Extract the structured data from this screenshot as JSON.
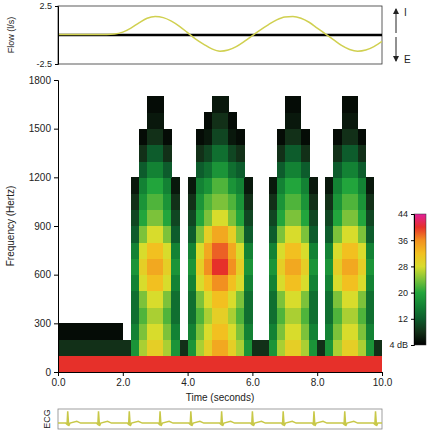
{
  "chart_data": [
    {
      "type": "line",
      "ylabel": "Flow (l/s)",
      "annotations": [
        "I",
        "E"
      ],
      "color": "#d0d050",
      "hline": 0,
      "xlim": [
        0,
        10
      ],
      "ylim": [
        -2.5,
        2.5
      ],
      "yticks": [
        2.5,
        -2.5
      ],
      "tick_labels": "y",
      "x": [
        0,
        0.25,
        0.5,
        0.75,
        1,
        1.25,
        1.5,
        1.75,
        2,
        2.25,
        2.5,
        2.75,
        3,
        3.25,
        3.5,
        3.75,
        4,
        4.25,
        4.5,
        4.75,
        5,
        5.25,
        5.5,
        5.75,
        6,
        6.25,
        6.5,
        6.75,
        7,
        7.25,
        7.5,
        7.75,
        8,
        8.25,
        8.5,
        8.75,
        9,
        9.25,
        9.5,
        9.75,
        10
      ],
      "values": [
        0.05,
        0.05,
        0.05,
        0.05,
        0.05,
        0.05,
        0.05,
        0.08,
        0.25,
        0.6,
        1.05,
        1.45,
        1.6,
        1.5,
        1.2,
        0.75,
        0.2,
        -0.35,
        -0.8,
        -1.2,
        -1.4,
        -1.3,
        -1.0,
        -0.55,
        -0.05,
        0.45,
        0.9,
        1.3,
        1.55,
        1.6,
        1.45,
        1.1,
        0.6,
        0.1,
        -0.4,
        -0.9,
        -1.25,
        -1.4,
        -1.3,
        -1.0,
        -0.55
      ]
    },
    {
      "type": "heatmap",
      "xlabel": "Time (seconds)",
      "ylabel": "Frequency (Hertz)",
      "xlim": [
        0,
        10
      ],
      "ylim": [
        0,
        1800
      ],
      "xticks": [
        {
          "value": 0,
          "label": "0.0"
        },
        {
          "value": 2,
          "label": "2.0"
        },
        {
          "value": 4,
          "label": "4.0"
        },
        {
          "value": 6,
          "label": "6.0"
        },
        {
          "value": 8,
          "label": "8.0"
        },
        {
          "value": 10,
          "label": "10.0"
        }
      ],
      "yticks": [
        0,
        300,
        600,
        900,
        1200,
        1500,
        1800
      ],
      "time_bins": [
        0,
        0.25,
        0.5,
        0.75,
        1,
        1.25,
        1.5,
        1.75,
        2,
        2.25,
        2.5,
        2.75,
        3,
        3.25,
        3.5,
        3.75,
        4,
        4.25,
        4.5,
        4.75,
        5,
        5.25,
        5.5,
        5.75,
        6,
        6.25,
        6.5,
        6.75,
        7,
        7.25,
        7.5,
        7.75,
        8,
        8.25,
        8.5,
        8.75,
        9,
        9.25,
        9.5,
        9.75,
        10
      ],
      "freq_bins": [
        0,
        100,
        200,
        300,
        400,
        500,
        600,
        700,
        800,
        900,
        1000,
        1100,
        1200,
        1300,
        1400,
        1500,
        1600,
        1700
      ],
      "cells": [
        [
          40,
          40,
          40,
          40,
          40,
          40,
          40,
          40,
          40,
          40,
          40,
          40,
          40,
          40,
          40,
          40,
          40,
          40,
          40,
          40,
          40,
          40,
          40,
          40,
          40,
          40,
          40,
          40,
          40,
          40,
          40,
          40,
          40,
          40,
          40,
          40,
          40,
          40,
          40,
          40
        ],
        [
          8,
          8,
          8,
          8,
          8,
          8,
          8,
          8,
          8,
          18,
          26,
          30,
          30,
          26,
          18,
          8,
          18,
          26,
          30,
          34,
          34,
          30,
          26,
          18,
          8,
          8,
          18,
          26,
          30,
          30,
          26,
          18,
          8,
          18,
          26,
          30,
          30,
          26,
          18,
          8
        ],
        [
          5,
          5,
          5,
          5,
          5,
          5,
          5,
          5,
          null,
          16,
          24,
          28,
          28,
          24,
          16,
          null,
          16,
          24,
          28,
          32,
          32,
          28,
          24,
          16,
          null,
          null,
          16,
          24,
          28,
          28,
          24,
          16,
          null,
          16,
          24,
          28,
          28,
          24,
          16,
          null
        ],
        [
          null,
          null,
          null,
          null,
          null,
          null,
          null,
          null,
          null,
          14,
          22,
          26,
          26,
          22,
          14,
          null,
          14,
          22,
          26,
          30,
          30,
          26,
          22,
          14,
          null,
          null,
          14,
          22,
          26,
          26,
          22,
          14,
          null,
          14,
          22,
          26,
          26,
          22,
          14,
          null
        ],
        [
          null,
          null,
          null,
          null,
          null,
          null,
          null,
          null,
          null,
          14,
          24,
          28,
          28,
          24,
          14,
          null,
          14,
          24,
          28,
          32,
          32,
          28,
          24,
          14,
          null,
          null,
          14,
          24,
          28,
          28,
          24,
          14,
          null,
          14,
          24,
          28,
          28,
          24,
          14,
          null
        ],
        [
          null,
          null,
          null,
          null,
          null,
          null,
          null,
          null,
          null,
          16,
          28,
          32,
          32,
          28,
          16,
          null,
          16,
          28,
          32,
          36,
          36,
          32,
          28,
          16,
          null,
          null,
          16,
          28,
          32,
          32,
          28,
          16,
          null,
          16,
          28,
          32,
          32,
          28,
          16,
          null
        ],
        [
          null,
          null,
          null,
          null,
          null,
          null,
          null,
          null,
          null,
          18,
          30,
          34,
          34,
          30,
          18,
          null,
          18,
          30,
          36,
          40,
          40,
          36,
          30,
          18,
          null,
          null,
          18,
          30,
          34,
          34,
          30,
          18,
          null,
          18,
          30,
          34,
          34,
          30,
          18,
          null
        ],
        [
          null,
          null,
          null,
          null,
          null,
          null,
          null,
          null,
          null,
          16,
          28,
          32,
          32,
          28,
          16,
          null,
          16,
          28,
          34,
          38,
          38,
          34,
          28,
          16,
          null,
          null,
          16,
          28,
          32,
          32,
          28,
          16,
          null,
          16,
          28,
          32,
          32,
          28,
          16,
          null
        ],
        [
          null,
          null,
          null,
          null,
          null,
          null,
          null,
          null,
          null,
          12,
          24,
          28,
          28,
          24,
          12,
          null,
          12,
          24,
          30,
          34,
          34,
          30,
          24,
          12,
          null,
          null,
          12,
          24,
          28,
          28,
          24,
          12,
          null,
          12,
          24,
          28,
          28,
          24,
          12,
          null
        ],
        [
          null,
          null,
          null,
          null,
          null,
          null,
          null,
          null,
          null,
          10,
          20,
          24,
          24,
          20,
          10,
          null,
          10,
          20,
          24,
          28,
          28,
          24,
          20,
          10,
          null,
          null,
          10,
          20,
          24,
          24,
          20,
          10,
          null,
          10,
          20,
          24,
          24,
          20,
          10,
          null
        ],
        [
          null,
          null,
          null,
          null,
          null,
          null,
          null,
          null,
          null,
          8,
          18,
          22,
          22,
          18,
          8,
          null,
          8,
          18,
          22,
          24,
          24,
          22,
          18,
          8,
          null,
          null,
          8,
          18,
          22,
          22,
          18,
          8,
          null,
          8,
          18,
          22,
          22,
          18,
          8,
          null
        ],
        [
          null,
          null,
          null,
          null,
          null,
          null,
          null,
          null,
          null,
          6,
          16,
          20,
          20,
          16,
          6,
          null,
          6,
          16,
          18,
          22,
          22,
          18,
          16,
          6,
          null,
          null,
          6,
          16,
          20,
          20,
          16,
          6,
          null,
          6,
          16,
          20,
          20,
          16,
          6,
          null
        ],
        [
          null,
          null,
          null,
          null,
          null,
          null,
          null,
          null,
          null,
          null,
          12,
          16,
          16,
          12,
          null,
          null,
          null,
          12,
          14,
          18,
          18,
          14,
          12,
          null,
          null,
          null,
          null,
          12,
          16,
          16,
          12,
          null,
          null,
          null,
          12,
          16,
          16,
          12,
          null,
          null
        ],
        [
          null,
          null,
          null,
          null,
          null,
          null,
          null,
          null,
          null,
          null,
          8,
          12,
          12,
          8,
          null,
          null,
          null,
          8,
          10,
          14,
          14,
          10,
          8,
          null,
          null,
          null,
          null,
          8,
          12,
          12,
          8,
          null,
          null,
          null,
          8,
          12,
          12,
          8,
          null,
          null
        ],
        [
          null,
          null,
          null,
          null,
          null,
          null,
          null,
          null,
          null,
          null,
          5,
          8,
          8,
          5,
          null,
          null,
          null,
          5,
          6,
          10,
          10,
          6,
          5,
          null,
          null,
          null,
          null,
          5,
          8,
          8,
          5,
          null,
          null,
          null,
          5,
          8,
          8,
          5,
          null,
          null
        ],
        [
          null,
          null,
          null,
          null,
          null,
          null,
          null,
          null,
          null,
          null,
          null,
          6,
          6,
          null,
          null,
          null,
          null,
          null,
          5,
          8,
          8,
          5,
          null,
          null,
          null,
          null,
          null,
          null,
          6,
          6,
          null,
          null,
          null,
          null,
          null,
          6,
          6,
          null,
          null,
          null
        ],
        [
          null,
          null,
          null,
          null,
          null,
          null,
          null,
          null,
          null,
          null,
          null,
          5,
          5,
          null,
          null,
          null,
          null,
          null,
          null,
          6,
          6,
          null,
          null,
          null,
          null,
          null,
          null,
          null,
          5,
          5,
          null,
          null,
          null,
          null,
          null,
          5,
          5,
          null,
          null,
          null
        ]
      ],
      "colorbar": {
        "range": [
          4,
          44
        ],
        "ticks": [
          44,
          36,
          28,
          20,
          12,
          {
            "value": 4,
            "label": "4 dB"
          }
        ]
      }
    },
    {
      "type": "line",
      "ylabel": "ECG",
      "color": "#c8c848",
      "xlim": [
        0,
        10
      ],
      "ylim": [
        -0.5,
        1.2
      ],
      "tick_labels": false,
      "x": [
        0,
        0.24,
        0.28,
        0.3,
        0.33,
        0.37,
        0.58,
        0.7,
        1.19,
        1.23,
        1.25,
        1.28,
        1.32,
        1.53,
        1.65,
        2.14,
        2.18,
        2.2,
        2.23,
        2.27,
        2.48,
        2.6,
        3.09,
        3.13,
        3.15,
        3.18,
        3.22,
        3.43,
        3.55,
        4.04,
        4.08,
        4.1,
        4.13,
        4.17,
        4.38,
        4.5,
        4.99,
        5.03,
        5.05,
        5.08,
        5.12,
        5.33,
        5.45,
        5.94,
        5.98,
        6.0,
        6.03,
        6.07,
        6.28,
        6.4,
        6.89,
        6.93,
        6.95,
        6.98,
        7.02,
        7.23,
        7.35,
        7.84,
        7.88,
        7.9,
        7.93,
        7.97,
        8.18,
        8.3,
        8.79,
        8.83,
        8.85,
        8.88,
        8.92,
        9.13,
        9.25,
        9.74,
        9.78,
        9.8,
        9.83,
        9.87,
        10
      ],
      "values": [
        0,
        0,
        -0.1,
        1.0,
        -0.25,
        0,
        0.15,
        0,
        0,
        -0.1,
        1.0,
        -0.25,
        0,
        0.15,
        0,
        0,
        -0.1,
        1.0,
        -0.25,
        0,
        0.15,
        0,
        0,
        -0.1,
        1.0,
        -0.25,
        0,
        0.15,
        0,
        0,
        -0.1,
        1.0,
        -0.25,
        0,
        0.15,
        0,
        0,
        -0.1,
        1.0,
        -0.25,
        0,
        0.15,
        0,
        0,
        -0.1,
        1.0,
        -0.25,
        0,
        0.15,
        0,
        0,
        -0.1,
        1.0,
        -0.25,
        0,
        0.15,
        0,
        0,
        -0.1,
        1.0,
        -0.25,
        0,
        0.15,
        0,
        0,
        -0.1,
        1.0,
        -0.25,
        0,
        0.15,
        0,
        0,
        -0.1,
        1.0,
        -0.25,
        0,
        0
      ]
    }
  ]
}
